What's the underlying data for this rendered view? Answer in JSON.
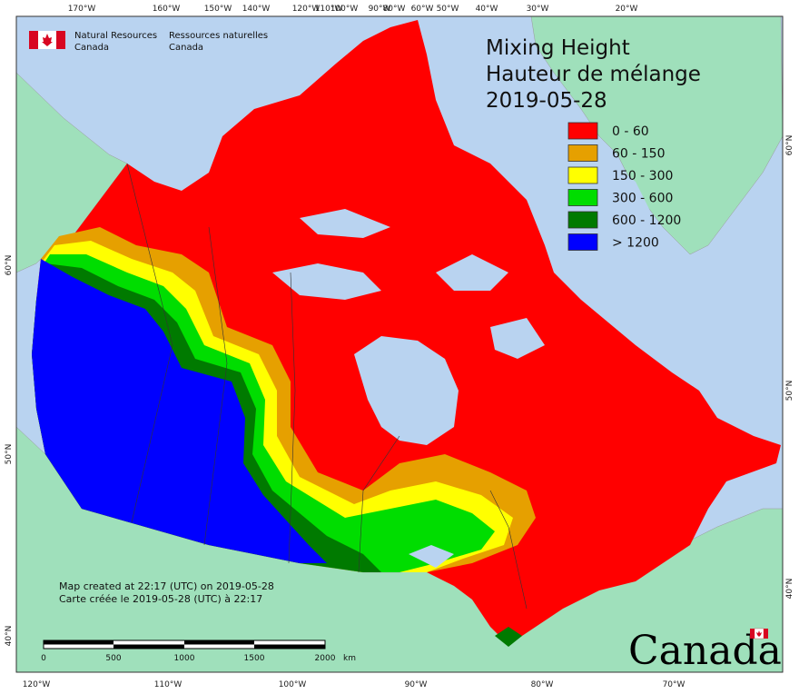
{
  "agency": {
    "en_line1": "Natural Resources",
    "en_line2": "Canada",
    "fr_line1": "Ressources naturelles",
    "fr_line2": "Canada"
  },
  "title": {
    "en": "Mixing Height",
    "fr": "Hauteur de mélange",
    "date": "2019-05-28"
  },
  "legend": [
    {
      "label": "0 - 60",
      "color": "#ff0000"
    },
    {
      "label": "60 - 150",
      "color": "#e6a000"
    },
    {
      "label": "150 - 300",
      "color": "#ffff00"
    },
    {
      "label": "300 - 600",
      "color": "#00dd00"
    },
    {
      "label": "600 - 1200",
      "color": "#007a00"
    },
    {
      "label": "> 1200",
      "color": "#0000ff"
    }
  ],
  "footer": {
    "created_en": "Map created at 22:17 (UTC) on 2019-05-28",
    "created_fr": "Carte créée le 2019-05-28 (UTC) à 22:17"
  },
  "scale_bar": {
    "ticks": [
      "0",
      "500",
      "1000",
      "1500",
      "2000"
    ],
    "unit": "km"
  },
  "graticule": {
    "top": [
      "170°W",
      "160°W",
      "150°W",
      "140°W",
      "120°W",
      "110°W",
      "100°W",
      "90°W",
      "80°W",
      "60°W",
      "50°W",
      "40°W",
      "30°W",
      "20°W"
    ],
    "bottom": [
      "120°W",
      "110°W",
      "100°W",
      "90°W",
      "80°W",
      "70°W"
    ],
    "left": [
      "60°N",
      "50°N",
      "40°N"
    ],
    "right": [
      "60°N",
      "50°N",
      "40°N"
    ]
  },
  "wordmark": "Canada",
  "colors": {
    "water": "#b9d3f0",
    "land_other": "#9fe0bb"
  }
}
